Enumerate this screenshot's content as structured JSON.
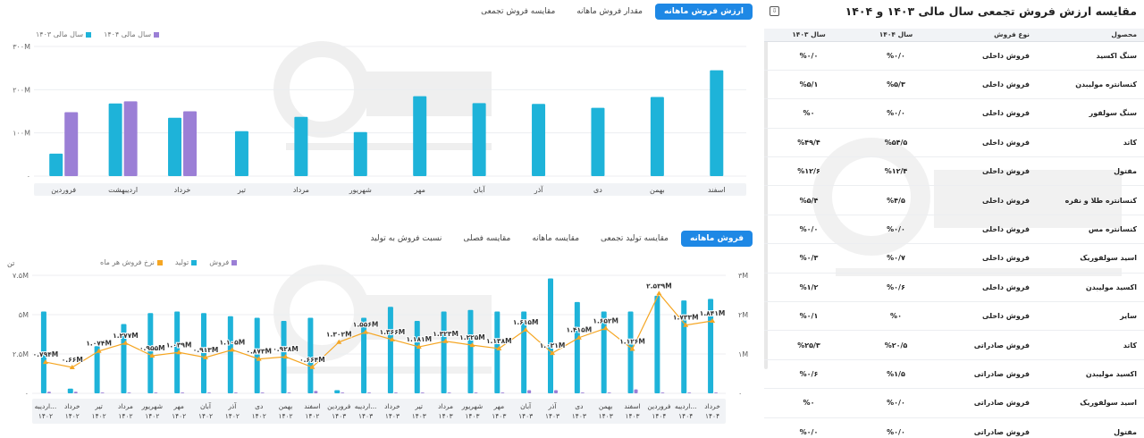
{
  "top": {
    "tabs": [
      {
        "label": "ارزش فروش ماهانه",
        "active": true
      },
      {
        "label": "مقدار فروش ماهانه",
        "active": false
      },
      {
        "label": "مقایسه فروش تجمعی",
        "active": false
      }
    ],
    "legend": [
      {
        "label": "سال مالی ۱۴۰۴",
        "color": "#9b7fd6"
      },
      {
        "label": "سال مالی ۱۴۰۳",
        "color": "#1eb3d9"
      }
    ]
  },
  "bottom": {
    "tabs": [
      {
        "label": "فروش ماهانه",
        "active": true
      },
      {
        "label": "مقایسه تولید تجمعی",
        "active": false
      },
      {
        "label": "مقایسه ماهانه",
        "active": false
      },
      {
        "label": "مقایسه فصلی",
        "active": false
      },
      {
        "label": "نسبت فروش به تولید",
        "active": false
      }
    ],
    "legend": [
      {
        "label": "فروش",
        "color": "#9b7fd6"
      },
      {
        "label": "تولید",
        "color": "#1eb3d9"
      },
      {
        "label": "نرخ فروش هر ماه",
        "color": "#f5a623"
      }
    ],
    "left_unit": "تن"
  },
  "panel": {
    "title": "مقایسه ارزش فروش تجمعی سال مالی ۱۴۰۳ و ۱۴۰۴",
    "icon": "export-icon",
    "columns": [
      "محصول",
      "نوع فروش",
      "سال ۱۴۰۴",
      "سال ۱۴۰۳"
    ],
    "rows": [
      [
        "سنگ اکسید",
        "فروش داخلی",
        "%۰/۰",
        "%۰/۰"
      ],
      [
        "کنسانتره مولیبدن",
        "فروش داخلی",
        "%۵/۳",
        "%۵/۱"
      ],
      [
        "سنگ سولفور",
        "فروش داخلی",
        "%۰/۰",
        "%۰"
      ],
      [
        "کاتد",
        "فروش داخلی",
        "%۵۴/۵",
        "%۴۹/۴"
      ],
      [
        "مفتول",
        "فروش داخلی",
        "%۱۲/۴",
        "%۱۲/۶"
      ],
      [
        "کنسانتره طلا و نقره",
        "فروش داخلی",
        "%۴/۵",
        "%۵/۴"
      ],
      [
        "کنسانتره مس",
        "فروش داخلی",
        "%۰/۰",
        "%۰/۰"
      ],
      [
        "اسید سولفوریک",
        "فروش داخلی",
        "%۰/۷",
        "%۰/۳"
      ],
      [
        "اکسید مولیبدن",
        "فروش داخلی",
        "%۰/۶",
        "%۱/۲"
      ],
      [
        "سایر",
        "فروش داخلی",
        "%۰",
        "%۰/۱"
      ],
      [
        "کاتد",
        "فروش صادراتی",
        "%۲۰/۵",
        "%۲۵/۳"
      ],
      [
        "اکسید مولیبدن",
        "فروش صادراتی",
        "%۱/۵",
        "%۰/۶"
      ],
      [
        "اسید سولفوریک",
        "فروش صادراتی",
        "%۰/۰",
        "%۰"
      ],
      [
        "مفتول",
        "فروش صادراتی",
        "%۰/۰",
        "%۰/۰"
      ]
    ]
  },
  "chart_data": [
    {
      "type": "bar",
      "categories": [
        "اسفند",
        "بهمن",
        "دی",
        "آذر",
        "آبان",
        "مهر",
        "شهریور",
        "مرداد",
        "تیر",
        "خرداد",
        "اردیبهشت",
        "فروردین"
      ],
      "series": [
        {
          "name": "سال مالی ۱۴۰۳",
          "color": "#1eb3d9",
          "values": [
            245,
            183,
            158,
            167,
            169,
            185,
            102,
            137,
            104,
            135,
            168,
            52
          ]
        },
        {
          "name": "سال مالی ۱۴۰۴",
          "color": "#9b7fd6",
          "values": [
            null,
            null,
            null,
            null,
            null,
            null,
            null,
            null,
            null,
            150,
            173,
            148
          ]
        }
      ],
      "y_ticks": [
        "۳۰۰M",
        "۲۰۰M",
        "۱۰۰M",
        "۰"
      ],
      "ylim": [
        0,
        300
      ],
      "grid": true
    },
    {
      "type": "bar",
      "categories": [
        [
          "اردیبه...",
          "۱۴۰۲"
        ],
        [
          "خرداد",
          "۱۴۰۲"
        ],
        [
          "تیر",
          "۱۴۰۲"
        ],
        [
          "مرداد",
          "۱۴۰۲"
        ],
        [
          "شهریور",
          "۱۴۰۲"
        ],
        [
          "مهر",
          "۱۴۰۲"
        ],
        [
          "آبان",
          "۱۴۰۲"
        ],
        [
          "آذر",
          "۱۴۰۲"
        ],
        [
          "دی",
          "۱۴۰۲"
        ],
        [
          "بهمن",
          "۱۴۰۲"
        ],
        [
          "اسفند",
          "۱۴۰۲"
        ],
        [
          "فروردین",
          "۱۴۰۳"
        ],
        [
          "اردیبه...",
          "۱۴۰۳"
        ],
        [
          "خرداد",
          "۱۴۰۳"
        ],
        [
          "تیر",
          "۱۴۰۳"
        ],
        [
          "مرداد",
          "۱۴۰۳"
        ],
        [
          "شهریور",
          "۱۴۰۳"
        ],
        [
          "مهر",
          "۱۴۰۳"
        ],
        [
          "آبان",
          "۱۴۰۳"
        ],
        [
          "آذر",
          "۱۴۰۳"
        ],
        [
          "دی",
          "۱۴۰۳"
        ],
        [
          "بهمن",
          "۱۴۰۳"
        ],
        [
          "اسفند",
          "۱۴۰۳"
        ],
        [
          "فروردین",
          "۱۴۰۴"
        ],
        [
          "اردیبه...",
          "۱۴۰۴"
        ],
        [
          "خرداد",
          "۱۴۰۴"
        ]
      ],
      "series": [
        {
          "name": "تولید",
          "color": "#1eb3d9",
          "axis": "left",
          "values": [
            5.2,
            0.3,
            3.0,
            4.4,
            5.1,
            5.2,
            5.1,
            4.9,
            4.8,
            4.6,
            4.8,
            0.2,
            4.8,
            5.5,
            4.6,
            5.2,
            5.3,
            5.2,
            5.2,
            7.3,
            5.8,
            5.2,
            5.2,
            6.2,
            5.9,
            6.0
          ]
        },
        {
          "name": "فروش",
          "color": "#9b7fd6",
          "axis": "left",
          "values": [
            0.1,
            0.1,
            0.05,
            0.05,
            0.05,
            0.05,
            0.05,
            0.05,
            0.05,
            0.05,
            0.15,
            0.05,
            0.05,
            0.05,
            0.05,
            0.05,
            0.05,
            0.05,
            0.2,
            0.2,
            0.05,
            0.05,
            0.25,
            0.05,
            0.05,
            0.05
          ]
        },
        {
          "name": "نرخ فروش هر ماه",
          "color": "#f5a623",
          "axis": "right",
          "values": [
            0.794,
            0.66,
            1.074,
            1.277,
            0.955,
            1.039,
            0.913,
            1.105,
            0.873,
            0.928,
            0.664,
            1.302,
            1.556,
            1.366,
            1.181,
            1.323,
            1.225,
            1.138,
            1.615,
            1.021,
            1.415,
            1.652,
            1.126,
            2.539,
            1.733,
            1.841
          ],
          "labels": [
            "۰.۷۹۴M",
            "۰.۶۶M",
            "۱.۰۷۴M",
            "۱.۲۷۷M",
            "۰.۹۵۵M",
            "۱.۰۳۹M",
            "۰.۹۱۳M",
            "۱.۱۰۵M",
            "۰.۸۷۳M",
            "۰.۹۲۸M",
            "۰.۶۶۴M",
            "۱.۳۰۲M",
            "۱.۵۵۶M",
            "۱.۳۶۶M",
            "۱.۱۸۱M",
            "۱.۳۲۳M",
            "۱.۲۲۵M",
            "۱.۱۳۸M",
            "۱.۶۱۵M",
            "۱.۰۲۱M",
            "۱.۴۱۵M",
            "۱.۶۵۲M",
            "۱.۱۲۶M",
            "۲.۵۳۹M",
            "۱.۷۳۳M",
            "۱.۸۴۱M"
          ]
        }
      ],
      "left_ticks": [
        "۷.۵M",
        "۵M",
        "۲.۵M",
        "۰"
      ],
      "right_ticks": [
        "۳M",
        "۲M",
        "۱M",
        "۰"
      ],
      "ylim_left": [
        0,
        7.5
      ],
      "ylim_right": [
        0,
        3
      ],
      "grid": true
    }
  ]
}
